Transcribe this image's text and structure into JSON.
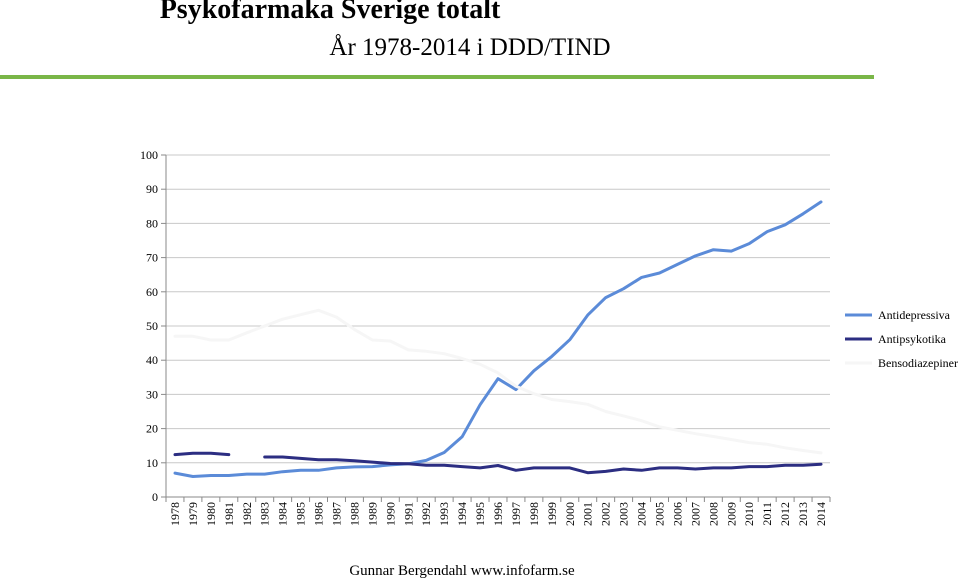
{
  "header": {
    "title": "Psykofarmaka Sverige totalt",
    "subtitle": "År 1978-2014 i DDD/TIND",
    "rule_color": "#7ab648"
  },
  "footer": {
    "credit": "Gunnar Bergendahl www.infofarm.se"
  },
  "chart_data": {
    "type": "line",
    "title": "",
    "xlabel": "",
    "ylabel": "",
    "ylim": [
      0,
      100
    ],
    "yticks": [
      0,
      10,
      20,
      30,
      40,
      50,
      60,
      70,
      80,
      90,
      100
    ],
    "grid": true,
    "legend_position": "right",
    "categories": [
      "1978",
      "1979",
      "1980",
      "1981",
      "1982",
      "1983",
      "1984",
      "1985",
      "1986",
      "1987",
      "1988",
      "1989",
      "1990",
      "1991",
      "1992",
      "1993",
      "1994",
      "1995",
      "1996",
      "1997",
      "1998",
      "1999",
      "2000",
      "2001",
      "2002",
      "2003",
      "2004",
      "2005",
      "2006",
      "2007",
      "2008",
      "2009",
      "2010",
      "2011",
      "2012",
      "2013",
      "2014"
    ],
    "series": [
      {
        "name": "Antidepressiva",
        "color": "#5b8bd8",
        "values": [
          7.0,
          6.0,
          6.3,
          6.3,
          6.7,
          6.7,
          7.4,
          7.8,
          7.8,
          8.5,
          8.8,
          8.9,
          9.4,
          9.7,
          10.7,
          13.0,
          17.6,
          27.0,
          34.6,
          31.4,
          36.9,
          41.1,
          46.0,
          53.2,
          58.3,
          60.9,
          64.2,
          65.5,
          68.0,
          70.5,
          72.3,
          71.9,
          74.1,
          77.6,
          79.6,
          82.8,
          86.3
        ]
      },
      {
        "name": "Antipsykotika",
        "color": "#2c2e82",
        "values": [
          12.4,
          12.8,
          12.8,
          12.4,
          null,
          11.7,
          11.7,
          11.3,
          10.9,
          10.9,
          10.6,
          10.2,
          9.8,
          9.7,
          9.3,
          9.3,
          8.9,
          8.5,
          9.2,
          7.8,
          8.5,
          8.5,
          8.5,
          7.1,
          7.5,
          8.2,
          7.8,
          8.5,
          8.5,
          8.2,
          8.5,
          8.5,
          8.9,
          8.9,
          9.3,
          9.3,
          9.6
        ]
      },
      {
        "name": "Bensodiazepiner",
        "color": "#f6f6f6",
        "values": [
          47.0,
          47.0,
          45.9,
          45.9,
          48.0,
          50.0,
          52.0,
          53.3,
          54.6,
          52.6,
          49.0,
          45.9,
          45.6,
          43.0,
          42.6,
          41.9,
          40.5,
          38.8,
          36.3,
          32.4,
          30.2,
          28.5,
          27.9,
          27.1,
          25.0,
          23.7,
          22.3,
          20.5,
          19.5,
          18.5,
          17.7,
          16.8,
          15.9,
          15.4,
          14.4,
          13.6,
          12.9
        ]
      }
    ]
  }
}
